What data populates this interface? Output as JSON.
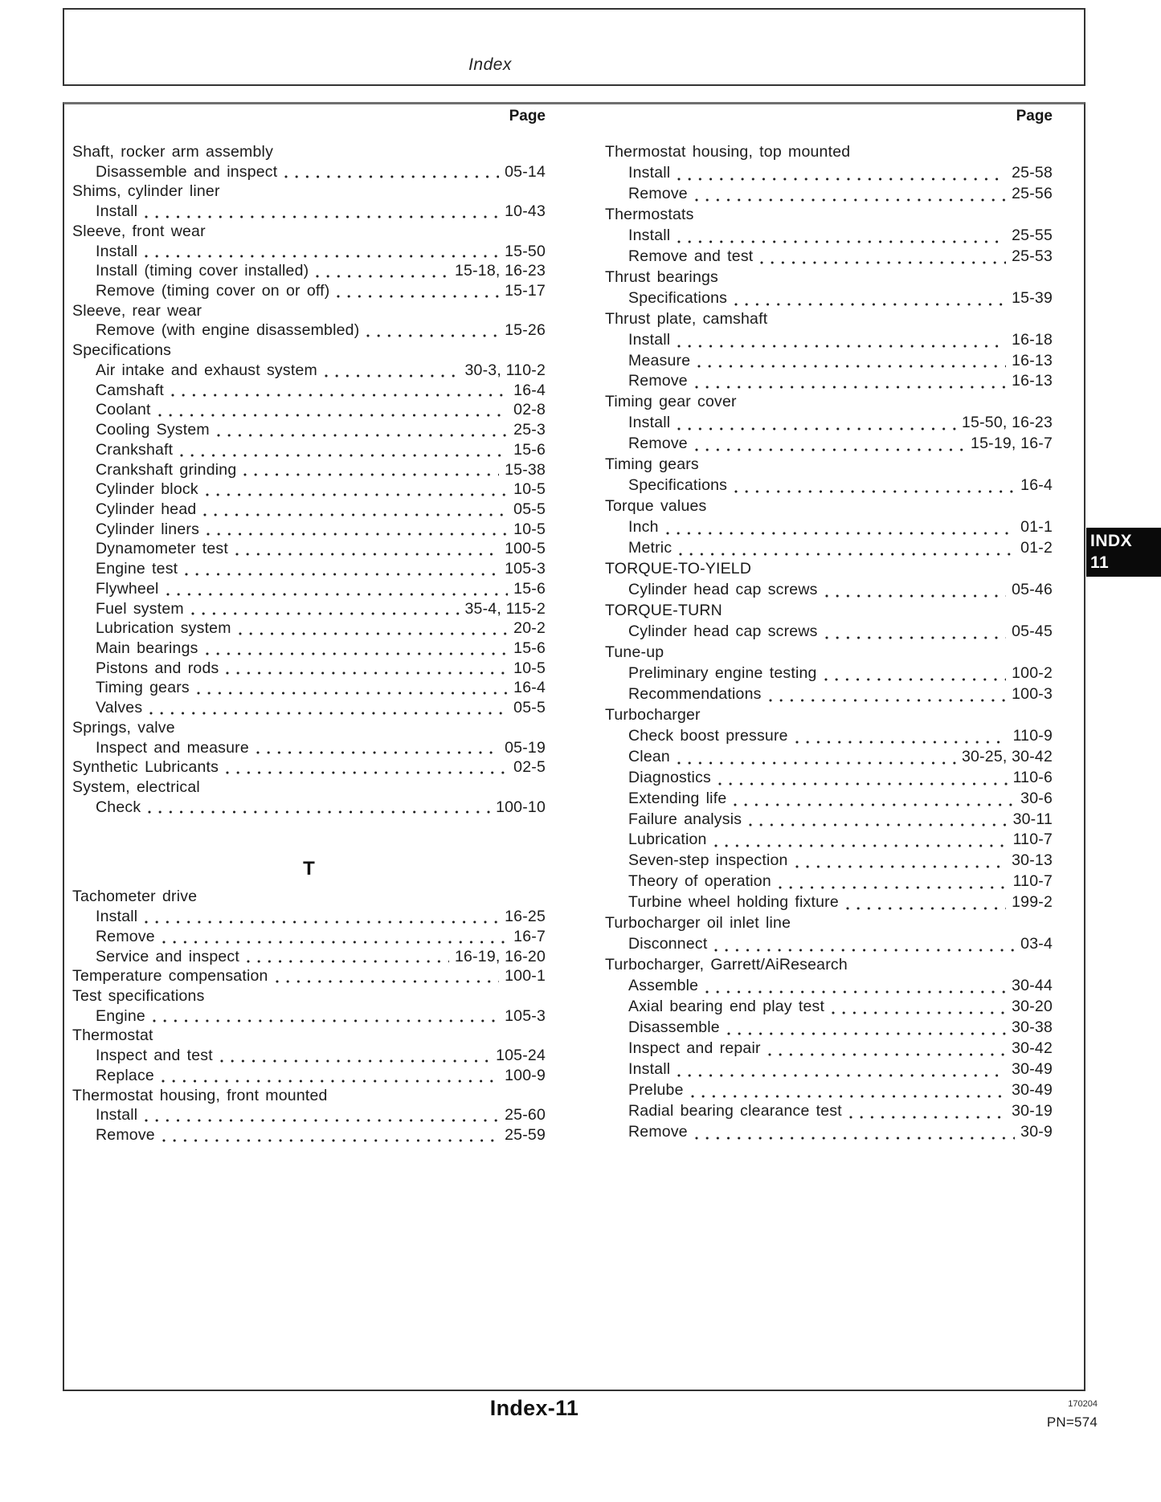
{
  "header": {
    "title": "Index"
  },
  "content": {
    "page_header": "Page",
    "columns": [
      {
        "entries": [
          {
            "label": "Shaft, rocker arm assembly",
            "indent": 0,
            "page": null
          },
          {
            "label": "Disassemble and inspect",
            "indent": 1,
            "page": "05-14"
          },
          {
            "label": "Shims, cylinder liner",
            "indent": 0,
            "page": null
          },
          {
            "label": "Install",
            "indent": 1,
            "page": "10-43"
          },
          {
            "label": "Sleeve, front wear",
            "indent": 0,
            "page": null
          },
          {
            "label": "Install",
            "indent": 1,
            "page": "15-50"
          },
          {
            "label": "Install (timing cover installed)",
            "indent": 1,
            "page": "15-18, 16-23"
          },
          {
            "label": "Remove (timing cover on or off)",
            "indent": 1,
            "page": "15-17"
          },
          {
            "label": "Sleeve, rear wear",
            "indent": 0,
            "page": null
          },
          {
            "label": "Remove (with engine disassembled)",
            "indent": 1,
            "page": "15-26"
          },
          {
            "label": "Specifications",
            "indent": 0,
            "page": null
          },
          {
            "label": "Air intake and exhaust system",
            "indent": 1,
            "page": "30-3, 110-2"
          },
          {
            "label": "Camshaft",
            "indent": 1,
            "page": "16-4"
          },
          {
            "label": "Coolant",
            "indent": 1,
            "page": "02-8"
          },
          {
            "label": "Cooling System",
            "indent": 1,
            "page": "25-3"
          },
          {
            "label": "Crankshaft",
            "indent": 1,
            "page": "15-6"
          },
          {
            "label": "Crankshaft grinding",
            "indent": 1,
            "page": "15-38"
          },
          {
            "label": "Cylinder block",
            "indent": 1,
            "page": "10-5"
          },
          {
            "label": "Cylinder head",
            "indent": 1,
            "page": "05-5"
          },
          {
            "label": "Cylinder liners",
            "indent": 1,
            "page": "10-5"
          },
          {
            "label": "Dynamometer test",
            "indent": 1,
            "page": "100-5"
          },
          {
            "label": "Engine test",
            "indent": 1,
            "page": "105-3"
          },
          {
            "label": "Flywheel",
            "indent": 1,
            "page": "15-6"
          },
          {
            "label": "Fuel system",
            "indent": 1,
            "page": "35-4, 115-2"
          },
          {
            "label": "Lubrication system",
            "indent": 1,
            "page": "20-2"
          },
          {
            "label": "Main bearings",
            "indent": 1,
            "page": "15-6"
          },
          {
            "label": "Pistons and rods",
            "indent": 1,
            "page": "10-5"
          },
          {
            "label": "Timing gears",
            "indent": 1,
            "page": "16-4"
          },
          {
            "label": "Valves",
            "indent": 1,
            "page": "05-5"
          },
          {
            "label": "Springs, valve",
            "indent": 0,
            "page": null
          },
          {
            "label": "Inspect and measure",
            "indent": 1,
            "page": "05-19"
          },
          {
            "label": "Synthetic Lubricants",
            "indent": 0,
            "page": "02-5"
          },
          {
            "label": "System, electrical",
            "indent": 0,
            "page": null
          },
          {
            "label": "Check",
            "indent": 1,
            "page": "100-10"
          },
          {
            "section": "T"
          },
          {
            "label": "Tachometer drive",
            "indent": 0,
            "page": null
          },
          {
            "label": "Install",
            "indent": 1,
            "page": "16-25"
          },
          {
            "label": "Remove",
            "indent": 1,
            "page": "16-7"
          },
          {
            "label": "Service and inspect",
            "indent": 1,
            "page": "16-19, 16-20"
          },
          {
            "label": "Temperature compensation",
            "indent": 0,
            "page": "100-1"
          },
          {
            "label": "Test specifications",
            "indent": 0,
            "page": null
          },
          {
            "label": "Engine",
            "indent": 1,
            "page": "105-3"
          },
          {
            "label": "Thermostat",
            "indent": 0,
            "page": null
          },
          {
            "label": "Inspect and test",
            "indent": 1,
            "page": "105-24"
          },
          {
            "label": "Replace",
            "indent": 1,
            "page": "100-9"
          },
          {
            "label": "Thermostat housing, front mounted",
            "indent": 0,
            "page": null
          },
          {
            "label": "Install",
            "indent": 1,
            "page": "25-60"
          },
          {
            "label": "Remove",
            "indent": 1,
            "page": "25-59"
          }
        ]
      },
      {
        "entries": [
          {
            "label": "Thermostat housing, top mounted",
            "indent": 0,
            "page": null
          },
          {
            "label": "Install",
            "indent": 1,
            "page": "25-58"
          },
          {
            "label": "Remove",
            "indent": 1,
            "page": "25-56"
          },
          {
            "label": "Thermostats",
            "indent": 0,
            "page": null
          },
          {
            "label": "Install",
            "indent": 1,
            "page": "25-55"
          },
          {
            "label": "Remove and test",
            "indent": 1,
            "page": "25-53"
          },
          {
            "label": "Thrust bearings",
            "indent": 0,
            "page": null
          },
          {
            "label": "Specifications",
            "indent": 1,
            "page": "15-39"
          },
          {
            "label": "Thrust plate, camshaft",
            "indent": 0,
            "page": null
          },
          {
            "label": "Install",
            "indent": 1,
            "page": "16-18"
          },
          {
            "label": "Measure",
            "indent": 1,
            "page": "16-13"
          },
          {
            "label": "Remove",
            "indent": 1,
            "page": "16-13"
          },
          {
            "label": "Timing gear cover",
            "indent": 0,
            "page": null
          },
          {
            "label": "Install",
            "indent": 1,
            "page": "15-50, 16-23"
          },
          {
            "label": "Remove",
            "indent": 1,
            "page": "15-19, 16-7"
          },
          {
            "label": "Timing gears",
            "indent": 0,
            "page": null
          },
          {
            "label": "Specifications",
            "indent": 1,
            "page": "16-4"
          },
          {
            "label": "Torque values",
            "indent": 0,
            "page": null
          },
          {
            "label": "Inch",
            "indent": 1,
            "page": "01-1"
          },
          {
            "label": "Metric",
            "indent": 1,
            "page": "01-2"
          },
          {
            "label": "TORQUE-TO-YIELD",
            "indent": 0,
            "page": null
          },
          {
            "label": "Cylinder head cap screws",
            "indent": 1,
            "page": "05-46"
          },
          {
            "label": "TORQUE-TURN",
            "indent": 0,
            "page": null
          },
          {
            "label": "Cylinder head cap screws",
            "indent": 1,
            "page": "05-45"
          },
          {
            "label": "Tune-up",
            "indent": 0,
            "page": null
          },
          {
            "label": "Preliminary engine testing",
            "indent": 1,
            "page": "100-2"
          },
          {
            "label": "Recommendations",
            "indent": 1,
            "page": "100-3"
          },
          {
            "label": "Turbocharger",
            "indent": 0,
            "page": null
          },
          {
            "label": "Check boost pressure",
            "indent": 1,
            "page": "110-9"
          },
          {
            "label": "Clean",
            "indent": 1,
            "page": "30-25, 30-42"
          },
          {
            "label": "Diagnostics",
            "indent": 1,
            "page": "110-6"
          },
          {
            "label": "Extending life",
            "indent": 1,
            "page": "30-6"
          },
          {
            "label": "Failure analysis",
            "indent": 1,
            "page": "30-11"
          },
          {
            "label": "Lubrication",
            "indent": 1,
            "page": "110-7"
          },
          {
            "label": "Seven-step inspection",
            "indent": 1,
            "page": "30-13"
          },
          {
            "label": "Theory of operation",
            "indent": 1,
            "page": "110-7"
          },
          {
            "label": "Turbine wheel holding fixture",
            "indent": 1,
            "page": "199-2"
          },
          {
            "label": "Turbocharger oil inlet line",
            "indent": 0,
            "page": null
          },
          {
            "label": "Disconnect",
            "indent": 1,
            "page": "03-4"
          },
          {
            "label": "Turbocharger, Garrett/AiResearch",
            "indent": 0,
            "page": null
          },
          {
            "label": "Assemble",
            "indent": 1,
            "page": "30-44"
          },
          {
            "label": "Axial bearing end play test",
            "indent": 1,
            "page": "30-20"
          },
          {
            "label": "Disassemble",
            "indent": 1,
            "page": "30-38"
          },
          {
            "label": "Inspect and repair",
            "indent": 1,
            "page": "30-42"
          },
          {
            "label": "Install",
            "indent": 1,
            "page": "30-49"
          },
          {
            "label": "Prelube",
            "indent": 1,
            "page": "30-49"
          },
          {
            "label": "Radial bearing clearance test",
            "indent": 1,
            "page": "30-19"
          },
          {
            "label": "Remove",
            "indent": 1,
            "page": "30-9"
          }
        ]
      }
    ]
  },
  "footer": {
    "title": "Index-11",
    "code": "170204",
    "pn": "PN=574"
  },
  "tab": {
    "line1": "INDX",
    "line2": "11"
  }
}
